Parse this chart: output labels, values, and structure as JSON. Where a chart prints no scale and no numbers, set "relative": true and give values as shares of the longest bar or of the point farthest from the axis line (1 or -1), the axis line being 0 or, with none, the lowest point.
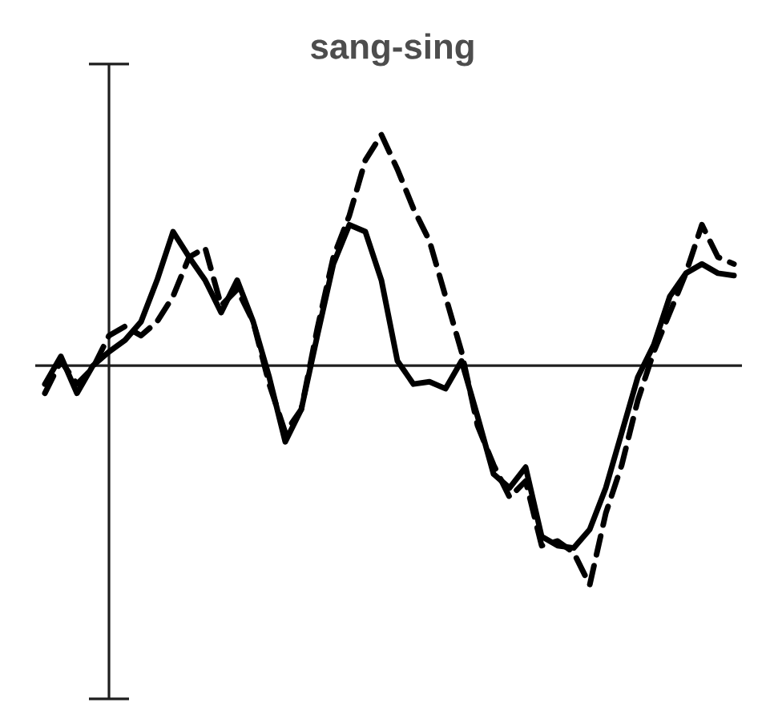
{
  "chart_data": {
    "type": "line",
    "title": "sang-sing",
    "relative": true,
    "grid": false,
    "marker": "none",
    "categories": [
      null,
      null,
      null,
      null,
      null,
      null,
      null,
      null,
      null,
      null,
      null,
      null,
      null,
      null,
      null,
      null,
      null,
      null,
      null,
      null,
      null,
      null,
      null,
      null,
      null,
      null,
      null,
      null,
      null,
      null,
      null,
      null,
      null,
      null,
      null,
      null,
      null,
      null,
      null,
      null,
      null,
      null,
      null,
      null
    ],
    "series": [
      {
        "color": "#000000",
        "line_style": "solid",
        "values": [
          -0.08,
          0.04,
          -0.12,
          0,
          0.06,
          0.11,
          0.19,
          0.37,
          0.58,
          0.47,
          0.37,
          0.23,
          0.37,
          0.19,
          -0.05,
          -0.33,
          -0.19,
          0.13,
          0.44,
          0.61,
          0.58,
          0.37,
          0.02,
          -0.08,
          -0.07,
          -0.1,
          0.02,
          -0.22,
          -0.47,
          -0.53,
          -0.44,
          -0.74,
          -0.78,
          -0.79,
          -0.71,
          -0.53,
          -0.29,
          -0.05,
          0.09,
          0.3,
          0.4,
          0.44,
          0.4,
          0.39
        ]
      },
      {
        "color": "#000000",
        "line_style": "dashed",
        "values": [
          -0.12,
          0.02,
          -0.08,
          -0.01,
          0.13,
          0.17,
          0.13,
          0.19,
          0.3,
          0.47,
          0.51,
          0.26,
          0.33,
          0.19,
          -0.08,
          -0.29,
          -0.19,
          0.16,
          0.47,
          0.65,
          0.89,
          1,
          0.85,
          0.68,
          0.54,
          0.3,
          0.06,
          -0.26,
          -0.43,
          -0.57,
          -0.5,
          -0.78,
          -0.76,
          -0.81,
          -0.95,
          -0.64,
          -0.43,
          -0.15,
          0.06,
          0.23,
          0.4,
          0.61,
          0.47,
          0.44
        ]
      }
    ]
  }
}
